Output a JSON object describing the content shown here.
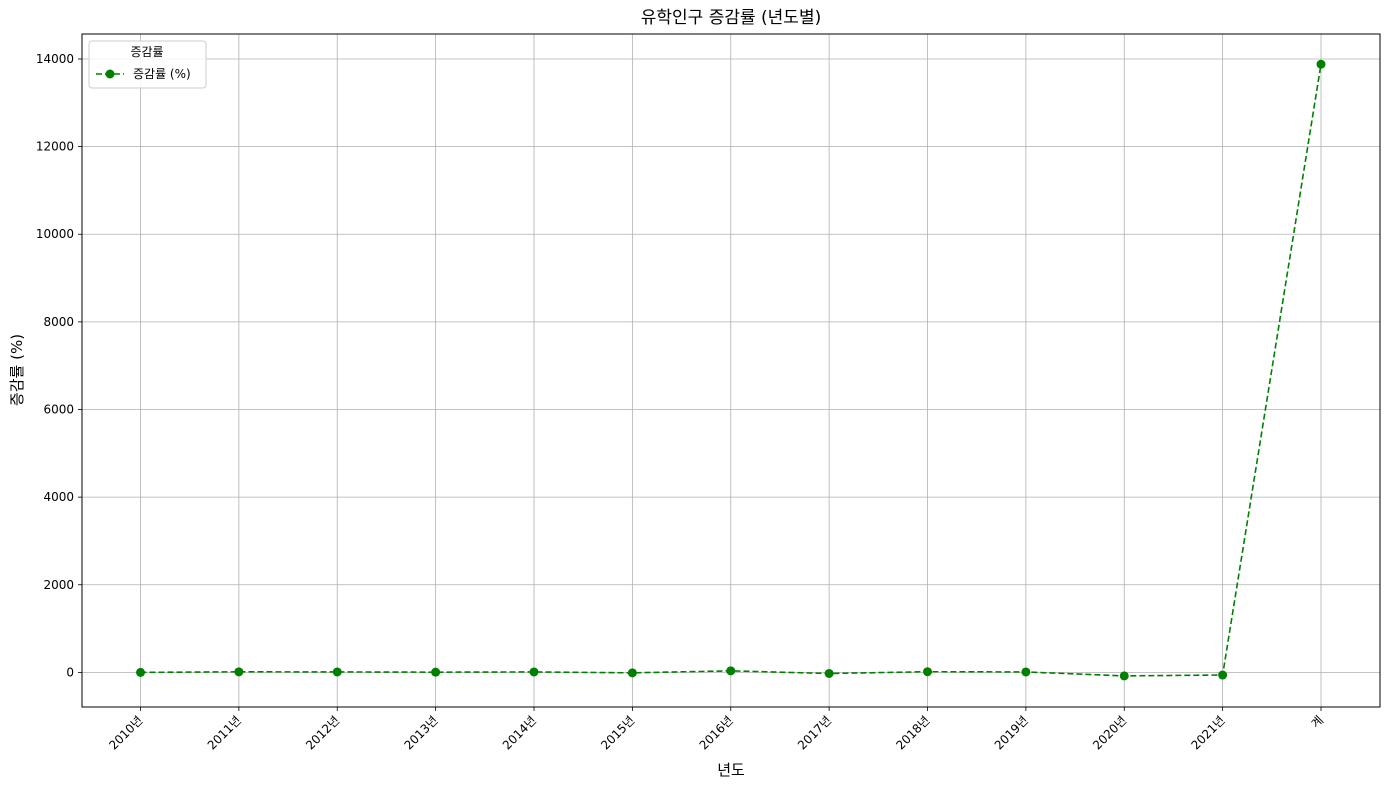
{
  "chart_data": {
    "type": "line",
    "title": "유학인구 증감률 (년도별)",
    "xlabel": "년도",
    "ylabel": "증감률 (%)",
    "categories": [
      "2010년",
      "2011년",
      "2012년",
      "2013년",
      "2014년",
      "2015년",
      "2016년",
      "2017년",
      "2018년",
      "2019년",
      "2020년",
      "2021년",
      "계"
    ],
    "series": [
      {
        "name": "증감률 (%)",
        "color": "#008000",
        "line_style": "dashed",
        "marker": "circle",
        "values": [
          0,
          13,
          10,
          5,
          10,
          -10,
          35,
          -25,
          15,
          10,
          -80,
          -60,
          13880
        ]
      }
    ],
    "yticks": [
      0,
      2000,
      4000,
      6000,
      8000,
      10000,
      12000,
      14000
    ],
    "ylim": [
      -790,
      14570
    ],
    "grid": true,
    "legend": {
      "title": "증감률",
      "placement": "top-left"
    }
  }
}
